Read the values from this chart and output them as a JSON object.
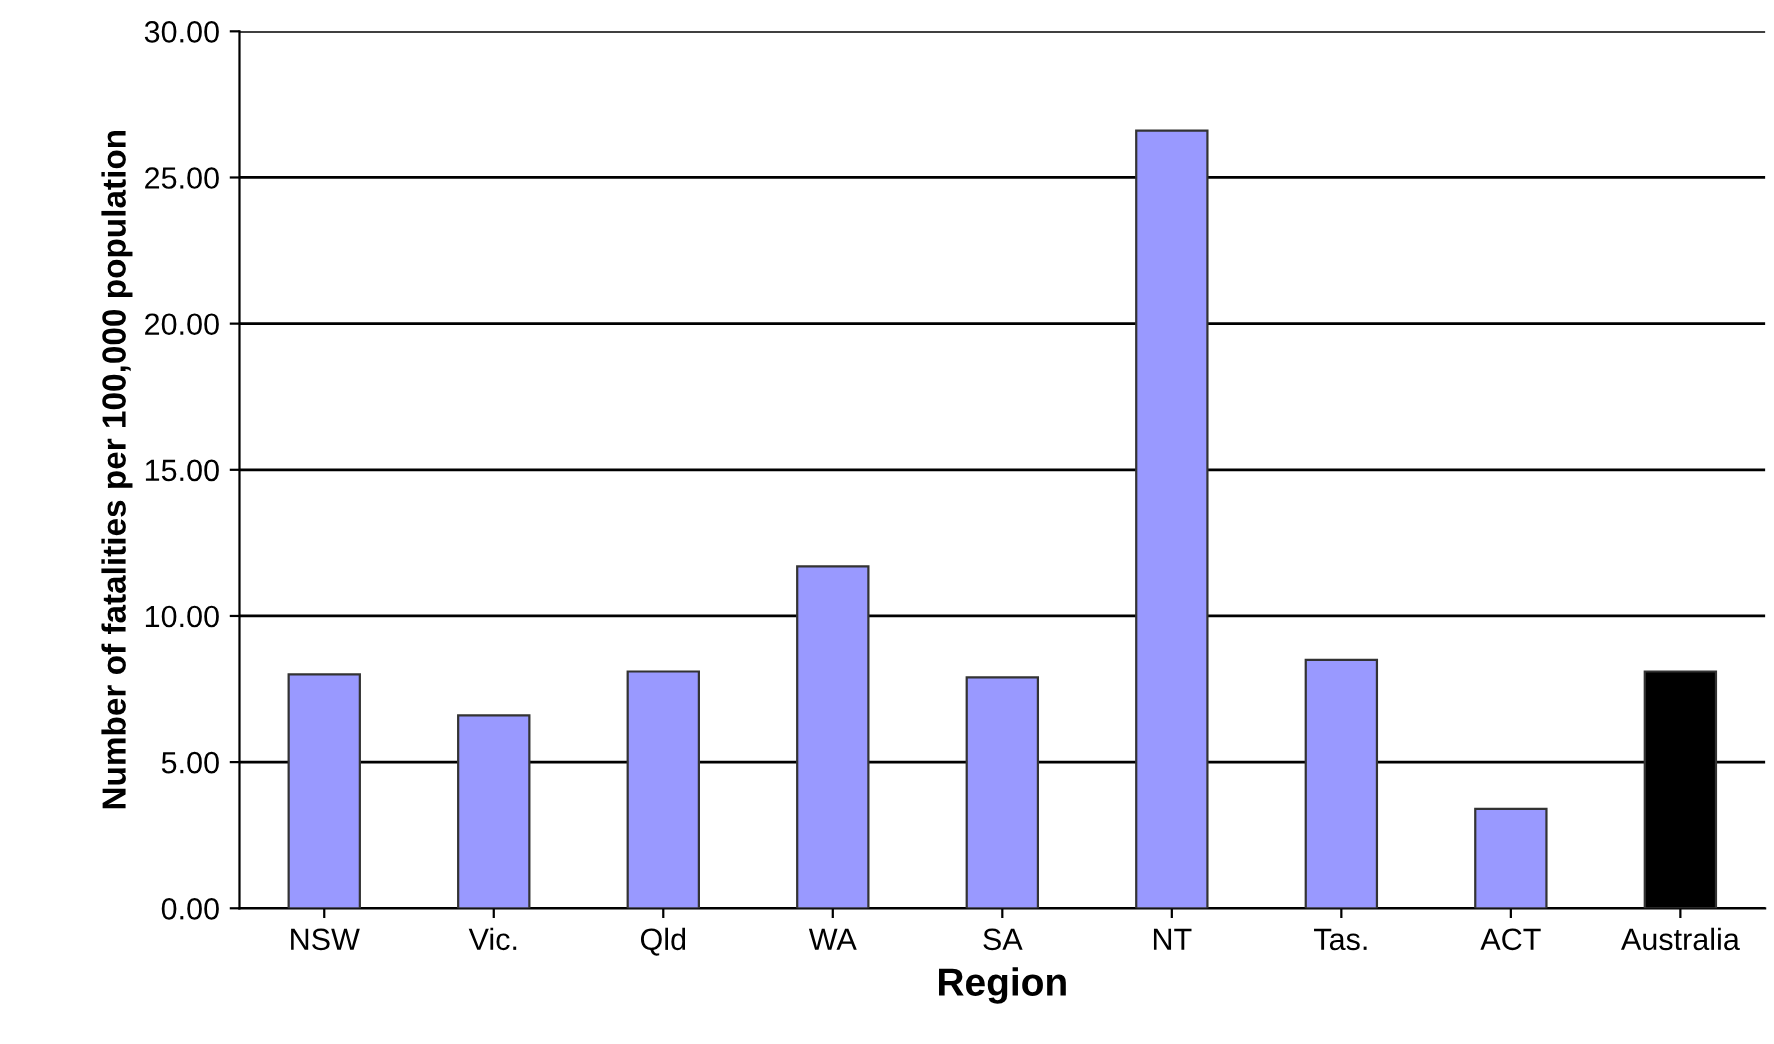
{
  "chart_data": {
    "type": "bar",
    "xlabel": "Region",
    "ylabel": "Number of fatalities per 100,000 population",
    "categories": [
      "NSW",
      "Vic.",
      "Qld",
      "WA",
      "SA",
      "NT",
      "Tas.",
      "ACT",
      "Australia"
    ],
    "values": [
      8.0,
      6.6,
      8.1,
      11.7,
      7.9,
      26.6,
      8.5,
      3.4,
      8.1
    ],
    "colors": [
      "#9999ff",
      "#9999ff",
      "#9999ff",
      "#9999ff",
      "#9999ff",
      "#9999ff",
      "#9999ff",
      "#9999ff",
      "#000000"
    ],
    "ylim": [
      0,
      30
    ],
    "yticks": [
      {
        "value": 0,
        "label": "0.00"
      },
      {
        "value": 5,
        "label": "5.00"
      },
      {
        "value": 10,
        "label": "10.00"
      },
      {
        "value": 15,
        "label": "15.00"
      },
      {
        "value": 20,
        "label": "20.00"
      },
      {
        "value": 25,
        "label": "25.00"
      },
      {
        "value": 30,
        "label": "30.00"
      }
    ],
    "grid": "y"
  }
}
